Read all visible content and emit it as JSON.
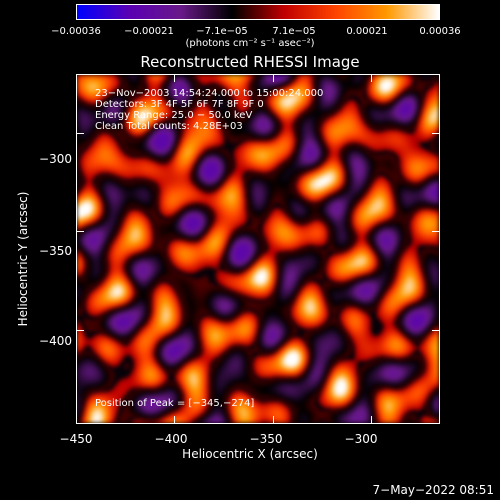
{
  "chart_data": {
    "type": "heatmap",
    "title": "Reconstructed RHESSI Image",
    "xlabel": "Heliocentric X (arcsec)",
    "ylabel": "Heliocentric Y (arcsec)",
    "xlim": [
      -450,
      -265
    ],
    "ylim": [
      -448,
      -270
    ],
    "xticks": [
      "−450",
      "−400",
      "−350",
      "−300"
    ],
    "xtick_values": [
      -450,
      -400,
      -350,
      -300
    ],
    "yticks": [
      "−300",
      "−350",
      "−400"
    ],
    "ytick_values": [
      -300,
      -350,
      -400
    ],
    "colorbar": {
      "ticks": [
        "−0.00036",
        "−0.00021",
        "−7.1e−05",
        "7.1e−05",
        "0.00021",
        "0.00036"
      ],
      "tick_values": [
        -0.00036,
        -0.00021,
        -7.1e-05,
        7.1e-05,
        0.00021,
        0.00036
      ],
      "range": [
        -0.00036,
        0.00036
      ],
      "unit": "(photons cm⁻² s⁻¹ asec⁻²)",
      "colors": [
        "#0000ff",
        "#5a00b4",
        "#6a1a8a",
        "#000000",
        "#c00000",
        "#ff4400",
        "#ff9900",
        "#ffffff"
      ]
    },
    "annotations": [
      "23−Nov−2003 14:54:24.000 to 15:00:24.000",
      "Detectors: 3F 4F 5F 6F 7F 8F 9F 0",
      "Energy Range: 25.0 − 50.0 keV",
      "Clean     Total counts: 4.28E+03"
    ],
    "peak_label": "Position of Peak = [−345,−274]",
    "peak": [
      -345,
      -274
    ]
  },
  "footer": {
    "timestamp": "7−May−2022 08:51"
  }
}
